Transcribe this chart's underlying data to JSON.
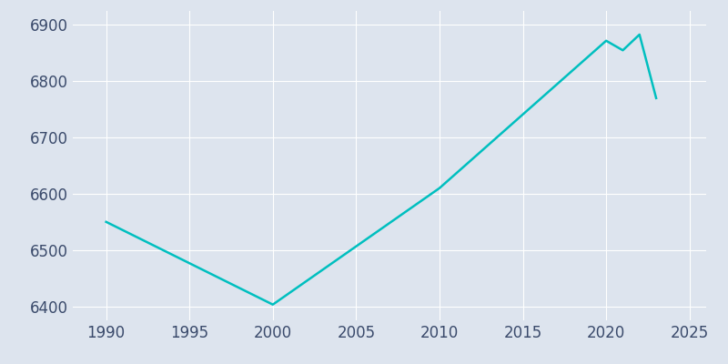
{
  "years": [
    1990,
    2000,
    2010,
    2020,
    2021,
    2022,
    2023
  ],
  "population": [
    6550,
    6403,
    6610,
    6872,
    6855,
    6883,
    6770
  ],
  "line_color": "#00BFBF",
  "background_color": "#DDE4EE",
  "grid_color": "#FFFFFF",
  "tick_color": "#3A4A6B",
  "xlim": [
    1988,
    2026
  ],
  "ylim": [
    6375,
    6925
  ],
  "xticks": [
    1990,
    1995,
    2000,
    2005,
    2010,
    2015,
    2020,
    2025
  ],
  "yticks": [
    6400,
    6500,
    6600,
    6700,
    6800,
    6900
  ],
  "linewidth": 1.8,
  "tick_fontsize": 12
}
